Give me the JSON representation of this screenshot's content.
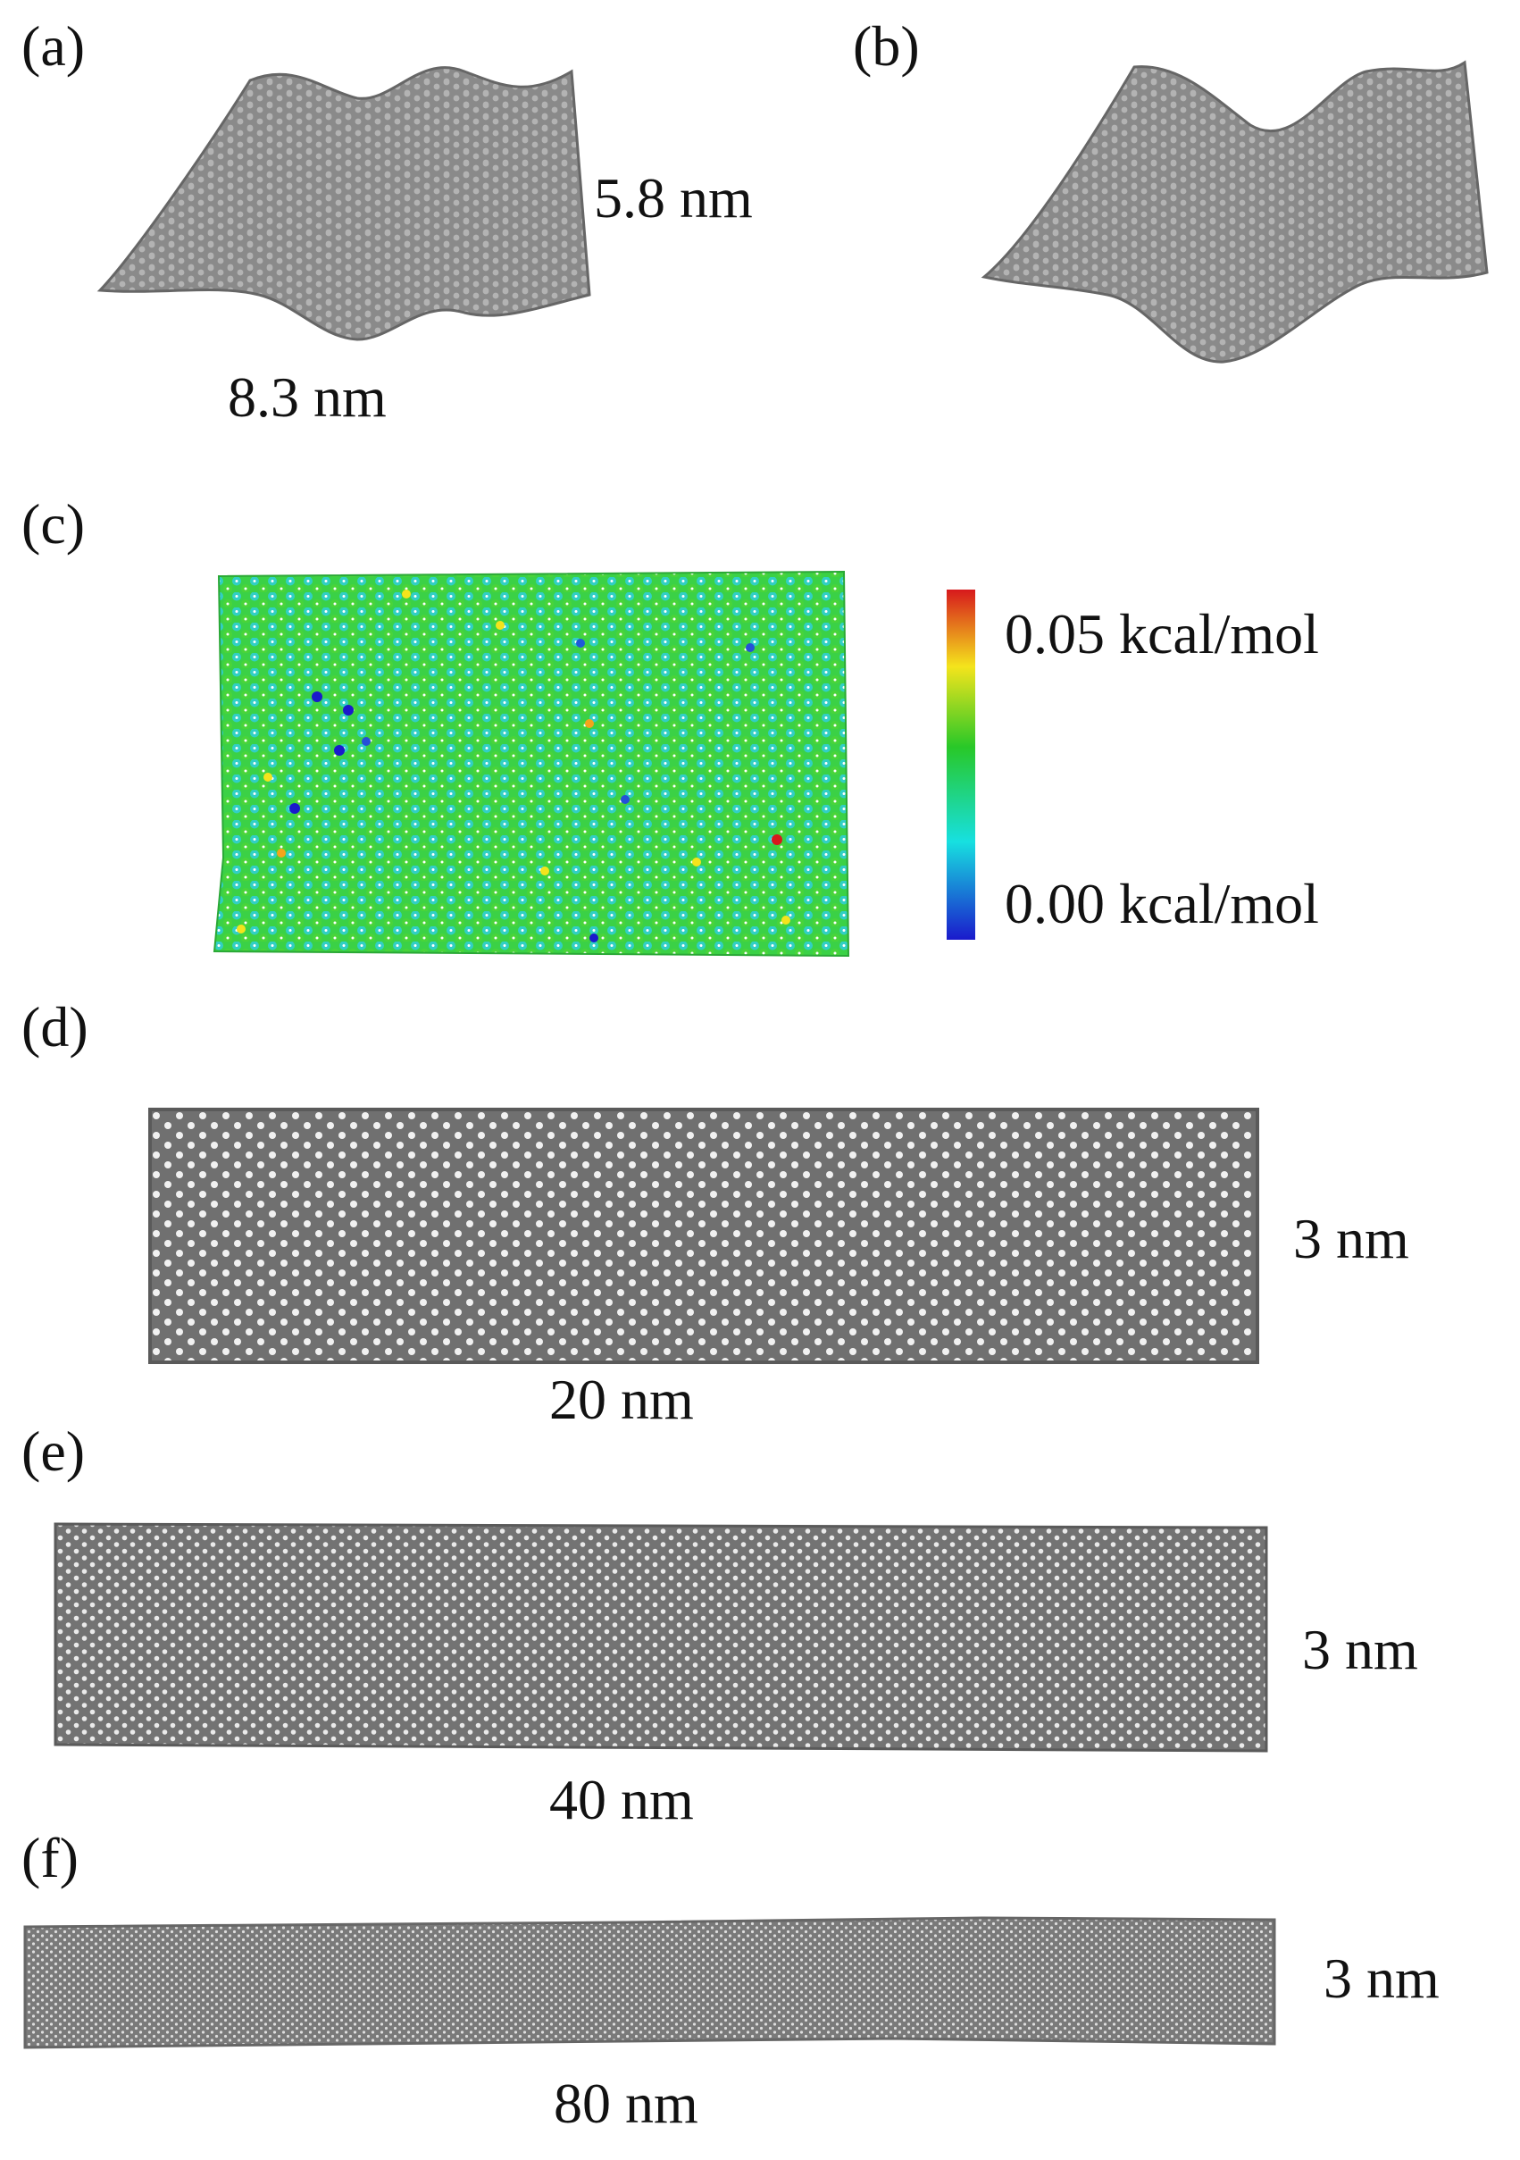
{
  "panels": {
    "a": {
      "tag": "(a)",
      "height_label": "5.8 nm",
      "width_label": "8.3 nm"
    },
    "b": {
      "tag": "(b)"
    },
    "c": {
      "tag": "(c)",
      "colorbar": {
        "max_label": "0.05 kcal/mol",
        "min_label": "0.00 kcal/mol",
        "colors": [
          "#d7191c",
          "#f4e41c",
          "#28c828",
          "#17e0e0",
          "#1a1acc"
        ]
      }
    },
    "d": {
      "tag": "(d)",
      "height_label": "3 nm",
      "width_label": "20 nm"
    },
    "e": {
      "tag": "(e)",
      "height_label": "3 nm",
      "width_label": "40 nm"
    },
    "f": {
      "tag": "(f)",
      "height_label": "3 nm",
      "width_label": "80 nm"
    }
  },
  "colors": {
    "sheet": "#7d7d7d",
    "sheet_edge": "#5e5e5e",
    "green": "#2fcf3a",
    "cyan": "#27d9d6"
  }
}
